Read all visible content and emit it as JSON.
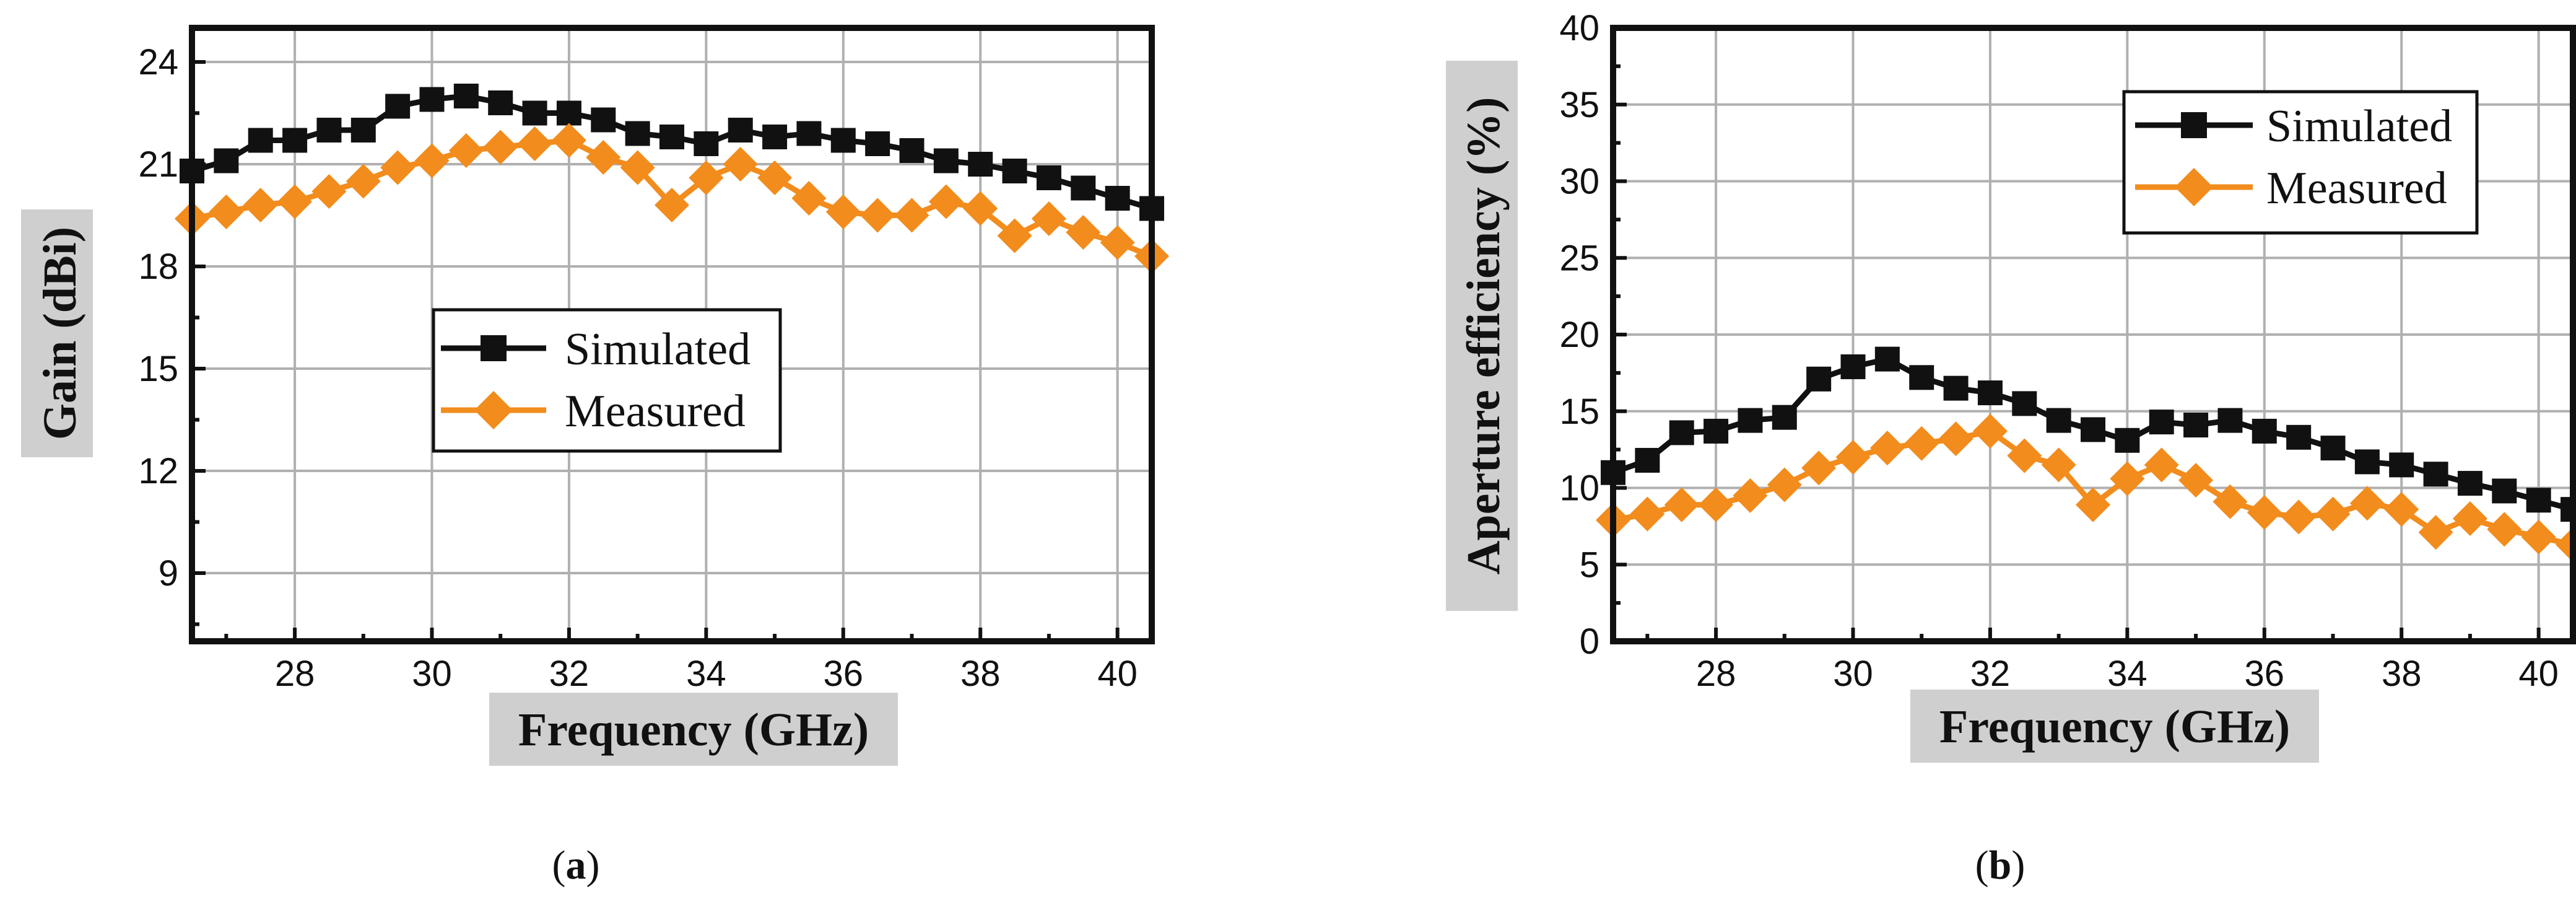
{
  "colors": {
    "simulated": "#111111",
    "measured": "#f28c1c",
    "title_background": "#cfcfcf",
    "grid": "#b0b0b0"
  },
  "panels": [
    {
      "caption_open": "(",
      "caption_letter": "a",
      "caption_close": ")"
    },
    {
      "caption_open": "(",
      "caption_letter": "b",
      "caption_close": ")"
    }
  ],
  "chart_data": [
    {
      "type": "line",
      "xlabel": "Frequency (GHz)",
      "ylabel": "Gain (dBi)",
      "xlim": [
        26.5,
        40.5
      ],
      "ylim": [
        7,
        25
      ],
      "xticks": [
        28,
        30,
        32,
        34,
        36,
        38,
        40
      ],
      "yticks": [
        9,
        12,
        15,
        18,
        21,
        24
      ],
      "grid": true,
      "legend_position": "center",
      "x": [
        26.5,
        27,
        27.5,
        28,
        28.5,
        29,
        29.5,
        30,
        30.5,
        31,
        31.5,
        32,
        32.5,
        33,
        33.5,
        34,
        34.5,
        35,
        35.5,
        36,
        36.5,
        37,
        37.5,
        38,
        38.5,
        39,
        39.5,
        40,
        40.5
      ],
      "series": [
        {
          "name": "Simulated",
          "marker": "square",
          "values": [
            20.8,
            21.1,
            21.7,
            21.7,
            22.0,
            22.0,
            22.7,
            22.9,
            23.0,
            22.8,
            22.5,
            22.5,
            22.3,
            21.9,
            21.8,
            21.6,
            22.0,
            21.8,
            21.9,
            21.7,
            21.6,
            21.4,
            21.1,
            21.0,
            20.8,
            20.6,
            20.3,
            20.0,
            19.7
          ]
        },
        {
          "name": "Measured",
          "marker": "diamond",
          "values": [
            19.4,
            19.6,
            19.8,
            19.9,
            20.2,
            20.5,
            20.9,
            21.1,
            21.4,
            21.5,
            21.6,
            21.7,
            21.2,
            20.9,
            19.8,
            20.6,
            21.0,
            20.6,
            20.0,
            19.6,
            19.5,
            19.5,
            19.9,
            19.7,
            18.9,
            19.4,
            19.0,
            18.7,
            18.3
          ]
        }
      ]
    },
    {
      "type": "line",
      "xlabel": "Frequency (GHz)",
      "ylabel": "Aperture efficiency (%)",
      "xlim": [
        26.5,
        40.5
      ],
      "ylim": [
        0,
        40
      ],
      "xticks": [
        28,
        30,
        32,
        34,
        36,
        38,
        40
      ],
      "yticks": [
        0,
        5,
        10,
        15,
        20,
        25,
        30,
        35,
        40
      ],
      "grid": true,
      "legend_position": "top-right",
      "x": [
        26.5,
        27,
        27.5,
        28,
        28.5,
        29,
        29.5,
        30,
        30.5,
        31,
        31.5,
        32,
        32.5,
        33,
        33.5,
        34,
        34.5,
        35,
        35.5,
        36,
        36.5,
        37,
        37.5,
        38,
        38.5,
        39,
        39.5,
        40,
        40.5
      ],
      "series": [
        {
          "name": "Simulated",
          "marker": "square",
          "values": [
            11.0,
            11.8,
            13.6,
            13.7,
            14.4,
            14.6,
            17.1,
            17.9,
            18.4,
            17.2,
            16.5,
            16.2,
            15.5,
            14.4,
            13.8,
            13.1,
            14.3,
            14.1,
            14.4,
            13.7,
            13.3,
            12.6,
            11.7,
            11.5,
            10.9,
            10.3,
            9.8,
            9.2,
            8.6
          ]
        },
        {
          "name": "Measured",
          "marker": "diamond",
          "values": [
            7.9,
            8.3,
            8.9,
            8.9,
            9.5,
            10.2,
            11.3,
            12.0,
            12.6,
            12.9,
            13.2,
            13.7,
            12.1,
            11.5,
            8.9,
            10.6,
            11.5,
            10.5,
            9.1,
            8.4,
            8.1,
            8.3,
            9.0,
            8.6,
            7.1,
            8.0,
            7.3,
            6.8,
            6.3
          ]
        }
      ]
    }
  ]
}
